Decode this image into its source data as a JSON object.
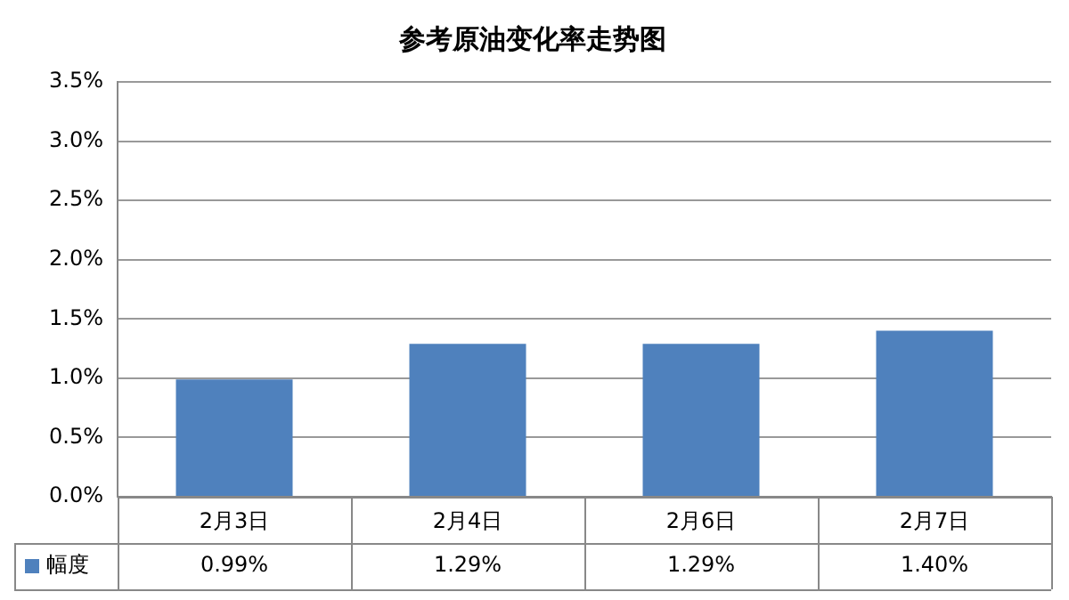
{
  "chart_data": {
    "type": "bar",
    "title": "参考原油变化率走势图",
    "categories": [
      "2月3日",
      "2月4日",
      "2月6日",
      "2月7日"
    ],
    "series": [
      {
        "name": "幅度",
        "color": "#4f81bd",
        "values": [
          0.99,
          1.29,
          1.29,
          1.4
        ],
        "value_labels": [
          "0.99%",
          "1.29%",
          "1.29%",
          "1.40%"
        ]
      }
    ],
    "ylim": [
      0,
      3.5
    ],
    "yticks": [
      {
        "value": 0,
        "label": "0.0%"
      },
      {
        "value": 0.5,
        "label": "0.5%"
      },
      {
        "value": 1,
        "label": "1.0%"
      },
      {
        "value": 1.5,
        "label": "1.5%"
      },
      {
        "value": 2,
        "label": "2.0%"
      },
      {
        "value": 2.5,
        "label": "2.5%"
      },
      {
        "value": 3,
        "label": "3.0%"
      },
      {
        "value": 3.5,
        "label": "3.5%"
      }
    ],
    "grid": "y"
  }
}
